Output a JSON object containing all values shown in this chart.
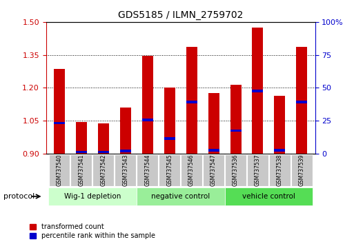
{
  "title": "GDS5185 / ILMN_2759702",
  "samples": [
    "GSM737540",
    "GSM737541",
    "GSM737542",
    "GSM737543",
    "GSM737544",
    "GSM737545",
    "GSM737546",
    "GSM737547",
    "GSM737536",
    "GSM737537",
    "GSM737538",
    "GSM737539"
  ],
  "red_top": [
    1.285,
    1.045,
    1.038,
    1.11,
    1.345,
    1.2,
    1.385,
    1.175,
    1.215,
    1.475,
    1.165,
    1.385
  ],
  "blue_val": [
    1.04,
    0.908,
    0.908,
    0.912,
    1.055,
    0.97,
    1.135,
    0.915,
    1.005,
    1.185,
    0.915,
    1.135
  ],
  "baseline": 0.9,
  "ylim_left": [
    0.9,
    1.5
  ],
  "ylim_right": [
    0,
    100
  ],
  "yticks_left": [
    0.9,
    1.05,
    1.2,
    1.35,
    1.5
  ],
  "yticks_right": [
    0,
    25,
    50,
    75,
    100
  ],
  "groups": [
    {
      "label": "Wig-1 depletion",
      "start": 0,
      "end": 3,
      "color": "#ccffcc"
    },
    {
      "label": "negative control",
      "start": 4,
      "end": 7,
      "color": "#99ee99"
    },
    {
      "label": "vehicle control",
      "start": 8,
      "end": 11,
      "color": "#55dd55"
    }
  ],
  "bar_color": "#cc0000",
  "blue_color": "#0000cc",
  "bar_width": 0.5,
  "left_label_color": "#cc0000",
  "right_label_color": "#0000cc",
  "protocol_label": "protocol",
  "legend_red": "transformed count",
  "legend_blue": "percentile rank within the sample"
}
